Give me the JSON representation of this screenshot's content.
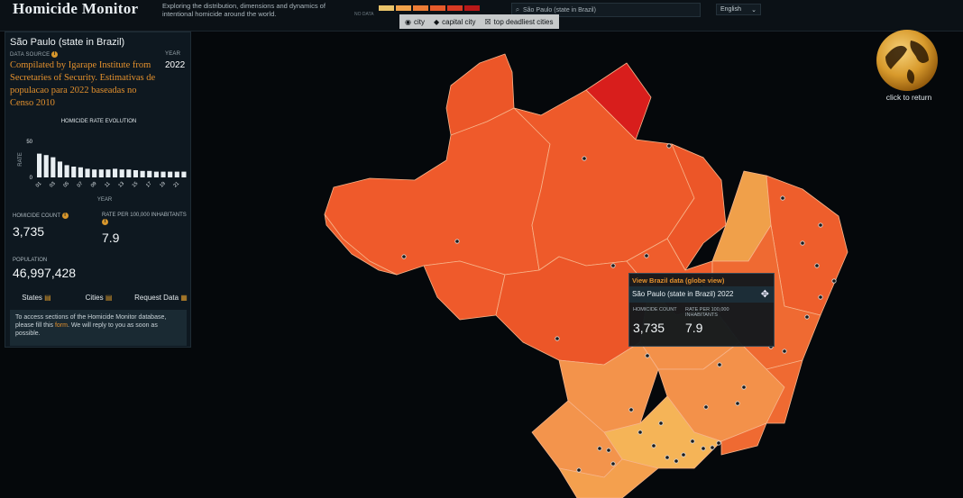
{
  "header": {
    "title": "Homicide Monitor",
    "subtitle": "Exploring the distribution, dimensions and dynamics of intentional homicide around the world.",
    "legend_colors": [
      "#e9c36a",
      "#f1a24a",
      "#ec7c35",
      "#e65a2a",
      "#d83a23",
      "#b81818"
    ],
    "legend_nodata": "NO DATA",
    "search_value": "São Paulo (state in Brazil)",
    "language": "English",
    "map_types": [
      {
        "label": "city",
        "icon": "dot-icon"
      },
      {
        "label": "capital city",
        "icon": "diamond-icon"
      },
      {
        "label": "top deadliest cities",
        "icon": "skull-icon"
      }
    ]
  },
  "panel": {
    "state_name": "São Paulo (state in Brazil)",
    "data_source_label": "DATA SOURCE",
    "data_source": "Compilated by Igarape Institute from Secretaries of Security. Estimativas de populacao para 2022 baseadas no Censo 2010",
    "year_label": "YEAR",
    "year": "2022",
    "chart_title": "HOMICIDE RATE EVOLUTION",
    "homicide_count_label": "HOMICIDE COUNT",
    "homicide_count": "3,735",
    "rate_label": "RATE PER 100,000 INHABITANTS",
    "rate": "7.9",
    "population_label": "POPULATION",
    "population": "46,997,428",
    "links": [
      "States",
      "Cities",
      "Request Data"
    ],
    "notice_before": "To access sections of the Homicide Monitor database, please fill this ",
    "notice_link": "form",
    "notice_after": ". We will reply to you as soon as possible."
  },
  "tooltip": {
    "header": "View Brazil data (globe view)",
    "subheader": "São Paulo (state in Brazil) 2022",
    "count_label": "HOMICIDE COUNT",
    "count": "3,735",
    "rate_label": "RATE PER 100,000 INHABITANTS",
    "rate": "7.9"
  },
  "globe": {
    "return_label": "click to return"
  },
  "chart_data": {
    "type": "bar",
    "title": "HOMICIDE RATE EVOLUTION",
    "xlabel": "YEAR",
    "ylabel": "RATE",
    "ylim": [
      0,
      50
    ],
    "yticks": [
      0,
      50
    ],
    "categories": [
      "01",
      "02",
      "03",
      "04",
      "05",
      "06",
      "07",
      "08",
      "09",
      "10",
      "11",
      "12",
      "13",
      "14",
      "15",
      "16",
      "17",
      "18",
      "19",
      "20",
      "21",
      "22"
    ],
    "xtick_labels": [
      "01",
      "03",
      "05",
      "07",
      "09",
      "11",
      "13",
      "15",
      "17",
      "19",
      "21"
    ],
    "values": [
      33,
      31,
      28,
      22,
      17,
      15,
      14,
      12,
      11,
      11,
      11,
      12,
      11,
      11,
      10,
      9,
      9,
      8,
      8,
      8,
      8,
      8
    ],
    "bar_color": "#e8eef2"
  }
}
